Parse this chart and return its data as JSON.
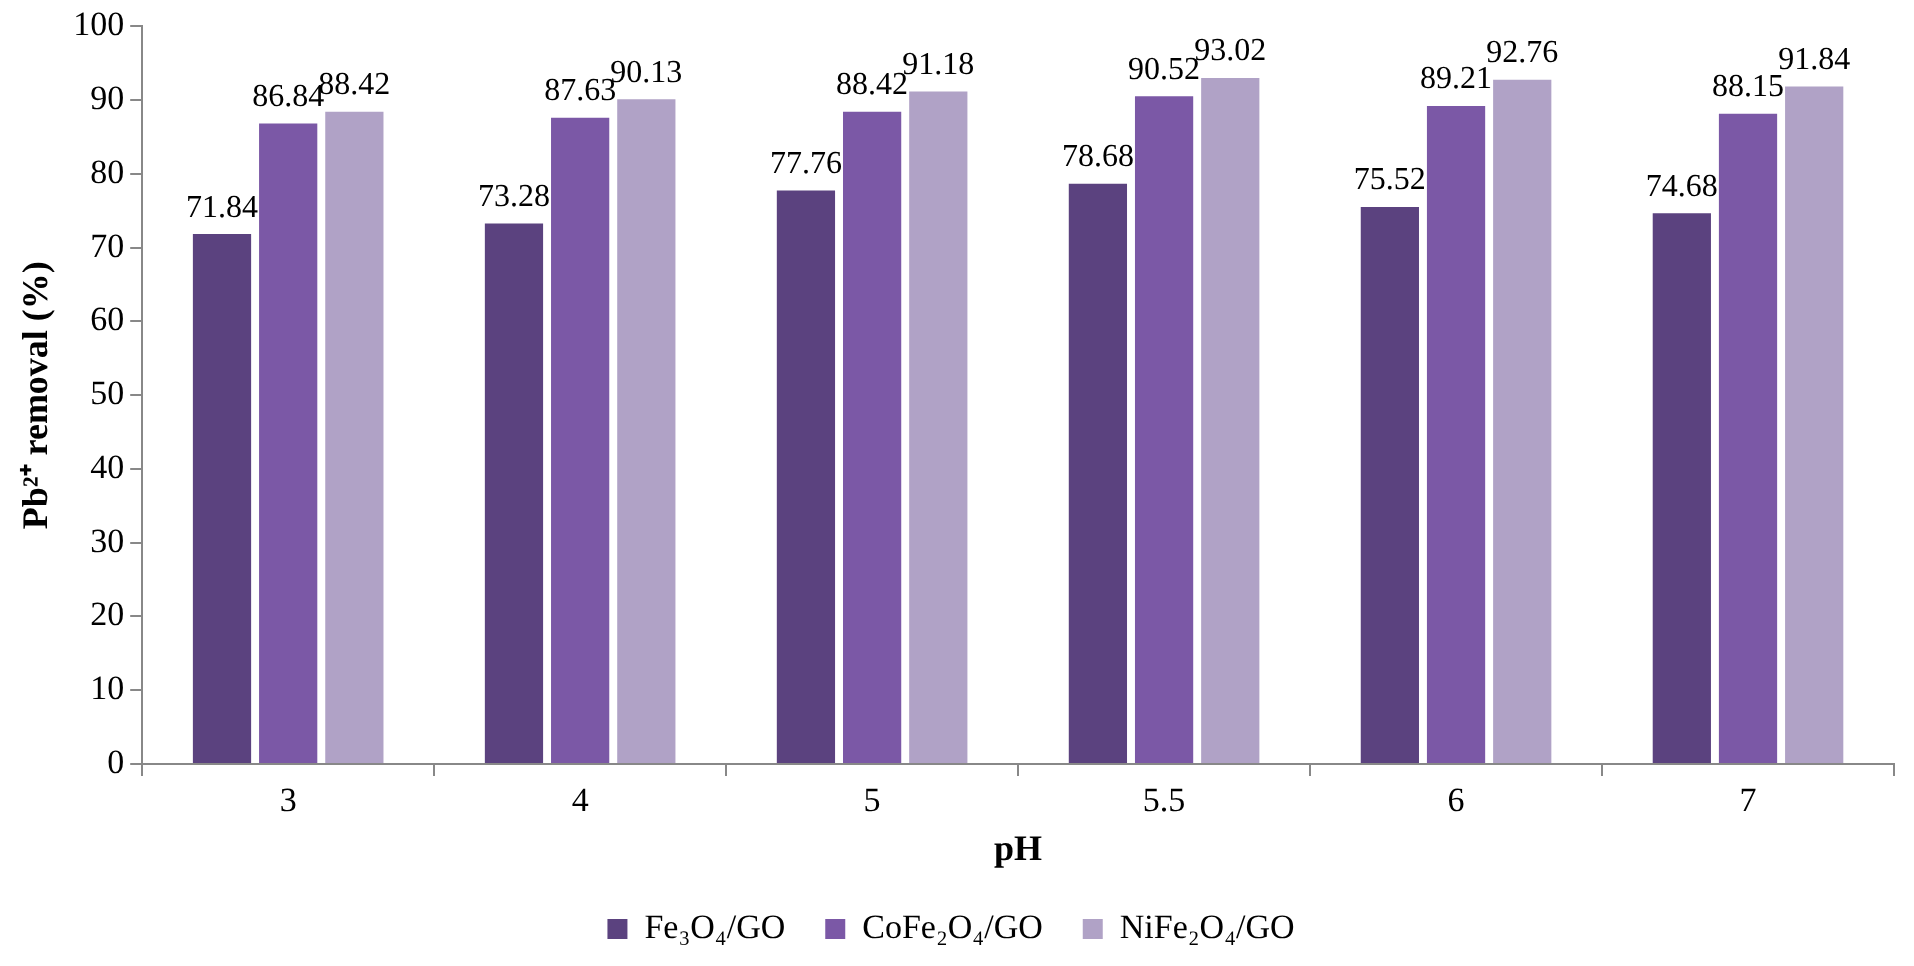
{
  "chart_data": {
    "type": "bar",
    "xlabel": "pH",
    "ylabel": "Pb²⁺ removal (%)",
    "categories": [
      "3",
      "4",
      "5",
      "5.5",
      "6",
      "7"
    ],
    "series": [
      {
        "name": "Fe₃O₄/GO",
        "color": "#5b427f",
        "values": [
          71.84,
          73.28,
          77.76,
          78.68,
          75.52,
          74.68
        ]
      },
      {
        "name": "CoFe₂O₄/GO",
        "color": "#7b58a6",
        "values": [
          86.84,
          87.63,
          88.42,
          90.52,
          89.21,
          88.15
        ]
      },
      {
        "name": "NiFe₂O₄/GO",
        "color": "#b0a2c6",
        "values": [
          88.42,
          90.13,
          91.18,
          93.02,
          92.76,
          91.84
        ]
      }
    ],
    "ylim": [
      0,
      100
    ],
    "yticks": [
      0,
      10,
      20,
      30,
      40,
      50,
      60,
      70,
      80,
      90,
      100
    ],
    "grid": false,
    "legend": "bottom",
    "data_labels": true
  }
}
